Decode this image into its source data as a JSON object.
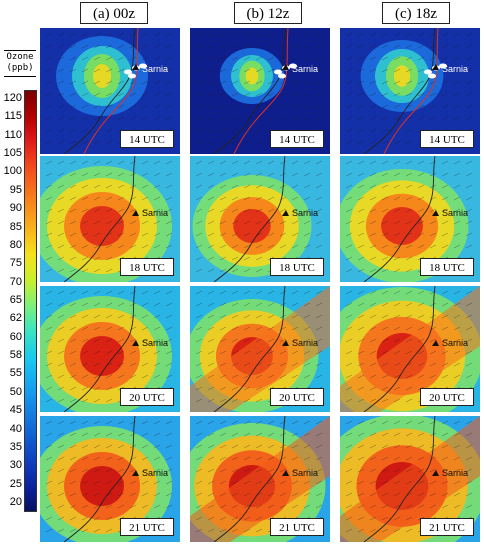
{
  "columns": [
    {
      "label": "(a) 00z"
    },
    {
      "label": "(b) 12z"
    },
    {
      "label": "(c) 18z"
    }
  ],
  "colorbar": {
    "title_line1": "Ozone",
    "title_line2": "(ppb)",
    "ticks": [
      "120",
      "115",
      "110",
      "105",
      "100",
      "95",
      "90",
      "85",
      "80",
      "75",
      "70",
      "65",
      "62",
      "60",
      "58",
      "55",
      "50",
      "45",
      "40",
      "35",
      "30",
      "25",
      "20"
    ]
  },
  "rows": [
    {
      "time": "14 UTC"
    },
    {
      "time": "18 UTC"
    },
    {
      "time": "20 UTC"
    },
    {
      "time": "21 UTC"
    }
  ],
  "place_label": "Sarnia"
}
